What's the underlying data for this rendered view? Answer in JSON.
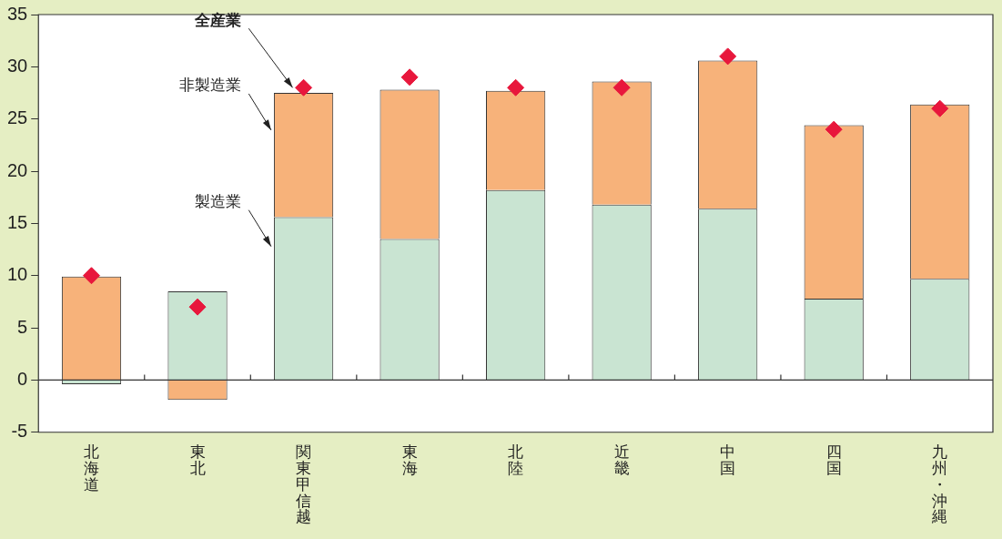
{
  "chart_data": {
    "type": "bar",
    "stacked": true,
    "categories": [
      "北海道",
      "東北",
      "関東甲信越",
      "東海",
      "北陸",
      "近畿",
      "中国",
      "四国",
      "九州・沖縄"
    ],
    "series": [
      {
        "name": "製造業",
        "color": "#c9e4d2",
        "values": [
          -0.4,
          8.5,
          15.6,
          13.5,
          18.2,
          16.8,
          16.4,
          7.8,
          9.7
        ]
      },
      {
        "name": "非製造業",
        "color": "#f7b27a",
        "values": [
          9.9,
          -1.9,
          11.9,
          14.3,
          9.5,
          11.8,
          14.2,
          16.6,
          16.7
        ]
      },
      {
        "name": "全産業",
        "type": "scatter",
        "marker": "diamond",
        "color": "#e8173c",
        "values": [
          10,
          7,
          28,
          29,
          28,
          28,
          31,
          24,
          26
        ]
      }
    ],
    "ylim": [
      -5,
      35
    ],
    "yticks": [
      -5,
      0,
      5,
      10,
      15,
      20,
      25,
      30,
      35
    ],
    "grid": false,
    "legend": false,
    "ref_lines": [
      {
        "axis": "y",
        "value": 0
      }
    ]
  }
}
